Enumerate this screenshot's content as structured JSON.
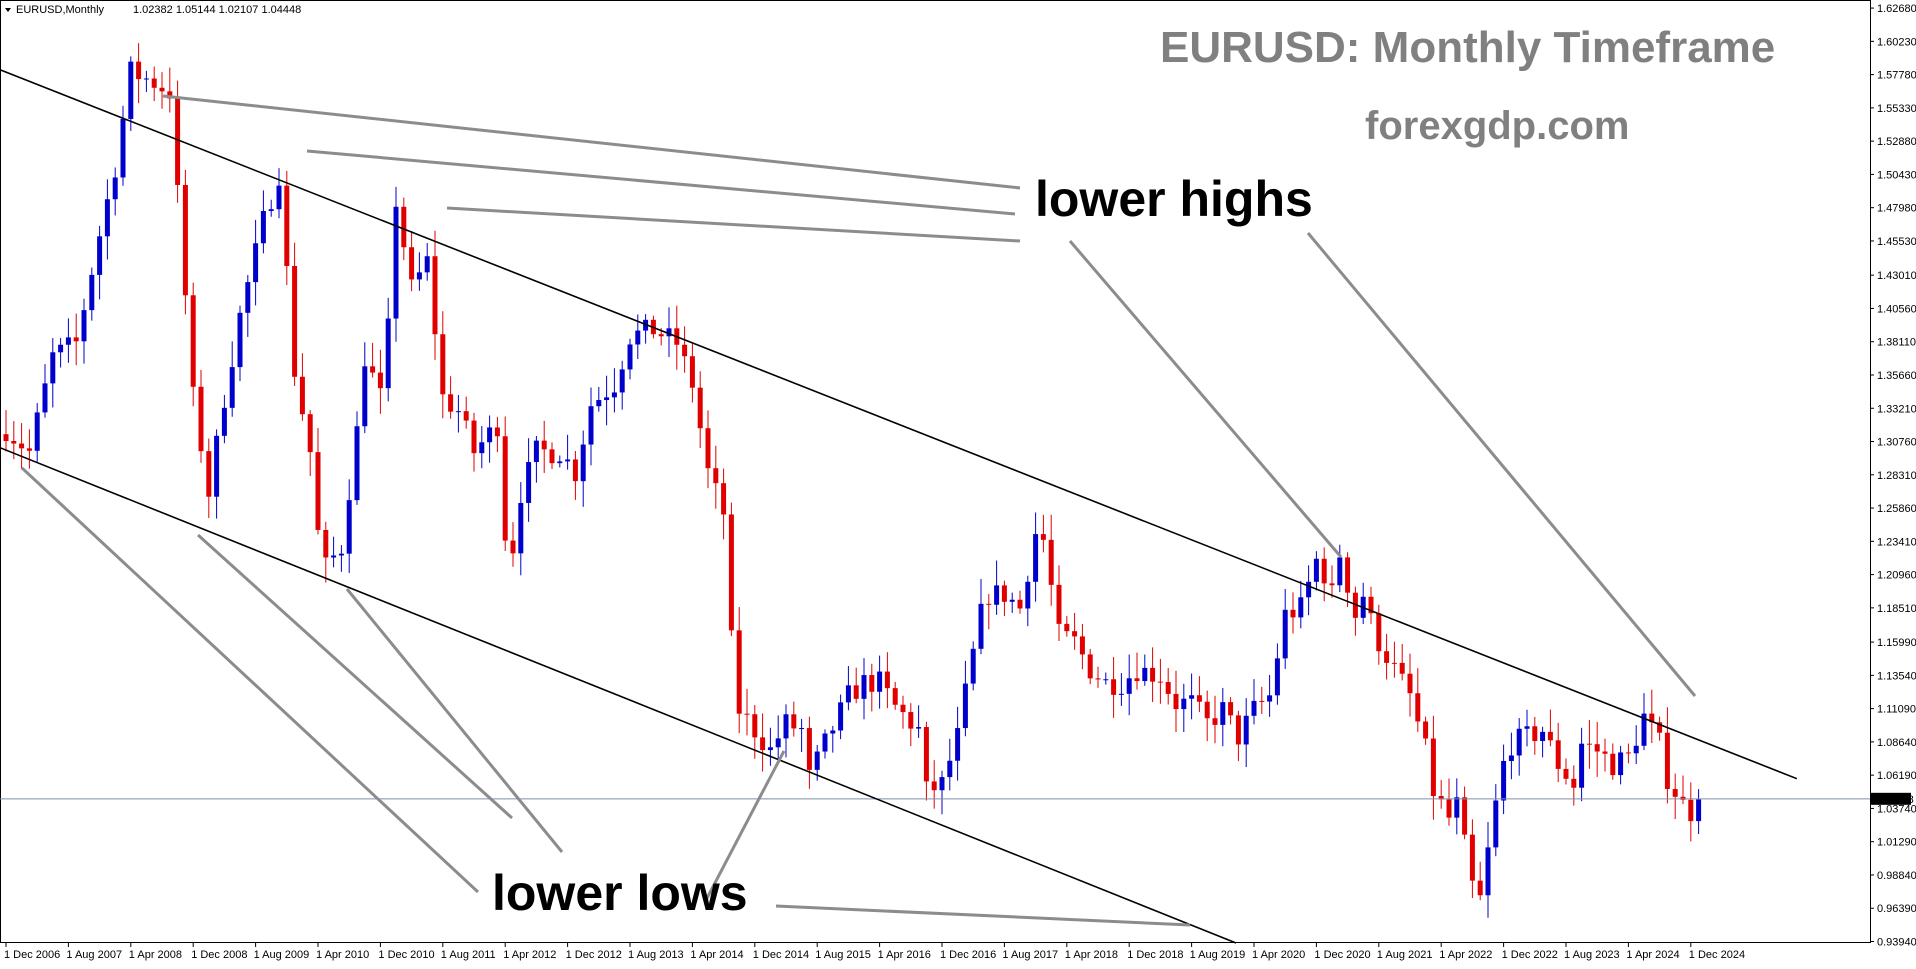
{
  "chart_data": {
    "type": "candlestick",
    "header": {
      "symbol": "EURUSD,Monthly",
      "ohlc": "1.02382 1.05144 1.02107 1.04448"
    },
    "title": "EURUSD: Monthly Timeframe",
    "subtitle": "forexgdp.com",
    "annotations": {
      "lower_highs": "lower highs",
      "lower_lows": "lower lows"
    },
    "current_price_label": "1.04448",
    "current_price": 1.04448,
    "ylim": [
      0.9383,
      1.6298
    ],
    "y_ticks": [
      {
        "v": 1.6268,
        "t": "1.62680"
      },
      {
        "v": 1.6023,
        "t": "1.60230"
      },
      {
        "v": 1.5778,
        "t": "1.57780"
      },
      {
        "v": 1.5533,
        "t": "1.55330"
      },
      {
        "v": 1.5288,
        "t": "1.52880"
      },
      {
        "v": 1.5043,
        "t": "1.50430"
      },
      {
        "v": 1.4798,
        "t": "1.47980"
      },
      {
        "v": 1.4553,
        "t": "1.45530"
      },
      {
        "v": 1.4301,
        "t": "1.43010"
      },
      {
        "v": 1.4056,
        "t": "1.40560"
      },
      {
        "v": 1.3811,
        "t": "1.38110"
      },
      {
        "v": 1.3566,
        "t": "1.35660"
      },
      {
        "v": 1.3321,
        "t": "1.33210"
      },
      {
        "v": 1.3076,
        "t": "1.30760"
      },
      {
        "v": 1.2831,
        "t": "1.28310"
      },
      {
        "v": 1.2586,
        "t": "1.25860"
      },
      {
        "v": 1.2341,
        "t": "1.23410"
      },
      {
        "v": 1.2096,
        "t": "1.20960"
      },
      {
        "v": 1.1851,
        "t": "1.18510"
      },
      {
        "v": 1.1599,
        "t": "1.15990"
      },
      {
        "v": 1.1354,
        "t": "1.13540"
      },
      {
        "v": 1.1109,
        "t": "1.11090"
      },
      {
        "v": 1.0864,
        "t": "1.08640"
      },
      {
        "v": 1.0619,
        "t": "1.06190"
      },
      {
        "v": 1.0374,
        "t": "1.03740"
      },
      {
        "v": 1.0129,
        "t": "1.01290"
      },
      {
        "v": 0.9884,
        "t": "0.98840"
      },
      {
        "v": 0.9639,
        "t": "0.96390"
      },
      {
        "v": 0.9394,
        "t": "0.93940"
      }
    ],
    "x_ticks": [
      {
        "i": 0,
        "t": "1 Dec 2006"
      },
      {
        "i": 8,
        "t": "1 Aug 2007"
      },
      {
        "i": 16,
        "t": "1 Apr 2008"
      },
      {
        "i": 24,
        "t": "1 Dec 2008"
      },
      {
        "i": 32,
        "t": "1 Aug 2009"
      },
      {
        "i": 40,
        "t": "1 Apr 2010"
      },
      {
        "i": 48,
        "t": "1 Dec 2010"
      },
      {
        "i": 56,
        "t": "1 Aug 2011"
      },
      {
        "i": 64,
        "t": "1 Apr 2012"
      },
      {
        "i": 72,
        "t": "1 Dec 2012"
      },
      {
        "i": 80,
        "t": "1 Aug 2013"
      },
      {
        "i": 88,
        "t": "1 Apr 2014"
      },
      {
        "i": 96,
        "t": "1 Dec 2014"
      },
      {
        "i": 104,
        "t": "1 Aug 2015"
      },
      {
        "i": 112,
        "t": "1 Apr 2016"
      },
      {
        "i": 120,
        "t": "1 Dec 2016"
      },
      {
        "i": 128,
        "t": "1 Aug 2017"
      },
      {
        "i": 136,
        "t": "1 Apr 2018"
      },
      {
        "i": 144,
        "t": "1 Dec 2018"
      },
      {
        "i": 152,
        "t": "1 Aug 2019"
      },
      {
        "i": 160,
        "t": "1 Apr 2020"
      },
      {
        "i": 168,
        "t": "1 Dec 2020"
      },
      {
        "i": 176,
        "t": "1 Aug 2021"
      },
      {
        "i": 184,
        "t": "1 Apr 2022"
      },
      {
        "i": 192,
        "t": "1 Dec 2022"
      },
      {
        "i": 200,
        "t": "1 Aug 2023"
      },
      {
        "i": 208,
        "t": "1 Apr 2024"
      },
      {
        "i": 216,
        "t": "1 Dec 2024"
      }
    ],
    "close_anchors": [
      [
        0,
        1.317
      ],
      [
        3,
        1.3
      ],
      [
        6,
        1.37
      ],
      [
        9,
        1.38
      ],
      [
        12,
        1.46
      ],
      [
        14,
        1.51
      ],
      [
        16,
        1.58
      ],
      [
        19,
        1.572
      ],
      [
        21,
        1.565
      ],
      [
        24,
        1.34
      ],
      [
        26,
        1.27
      ],
      [
        28,
        1.34
      ],
      [
        30,
        1.4
      ],
      [
        33,
        1.47
      ],
      [
        35,
        1.505
      ],
      [
        37,
        1.36
      ],
      [
        39,
        1.3
      ],
      [
        40,
        1.24
      ],
      [
        41,
        1.215
      ],
      [
        43,
        1.23
      ],
      [
        45,
        1.315
      ],
      [
        46,
        1.37
      ],
      [
        48,
        1.34
      ],
      [
        49,
        1.39
      ],
      [
        50,
        1.485
      ],
      [
        52,
        1.42
      ],
      [
        54,
        1.44
      ],
      [
        56,
        1.34
      ],
      [
        58,
        1.33
      ],
      [
        60,
        1.3
      ],
      [
        63,
        1.32
      ],
      [
        64,
        1.24
      ],
      [
        65,
        1.23
      ],
      [
        66,
        1.27
      ],
      [
        68,
        1.3
      ],
      [
        71,
        1.3
      ],
      [
        73,
        1.285
      ],
      [
        75,
        1.335
      ],
      [
        78,
        1.35
      ],
      [
        80,
        1.385
      ],
      [
        83,
        1.39
      ],
      [
        86,
        1.38
      ],
      [
        88,
        1.35
      ],
      [
        90,
        1.285
      ],
      [
        92,
        1.255
      ],
      [
        93,
        1.16
      ],
      [
        94,
        1.11
      ],
      [
        96,
        1.095
      ],
      [
        98,
        1.08
      ],
      [
        100,
        1.1
      ],
      [
        102,
        1.095
      ],
      [
        103,
        1.06
      ],
      [
        105,
        1.085
      ],
      [
        108,
        1.12
      ],
      [
        110,
        1.13
      ],
      [
        112,
        1.13
      ],
      [
        114,
        1.112
      ],
      [
        117,
        1.095
      ],
      [
        118,
        1.05
      ],
      [
        120,
        1.055
      ],
      [
        122,
        1.09
      ],
      [
        123,
        1.122
      ],
      [
        125,
        1.18
      ],
      [
        126,
        1.195
      ],
      [
        128,
        1.195
      ],
      [
        130,
        1.185
      ],
      [
        132,
        1.24
      ],
      [
        133,
        1.235
      ],
      [
        135,
        1.165
      ],
      [
        137,
        1.16
      ],
      [
        139,
        1.14
      ],
      [
        141,
        1.13
      ],
      [
        143,
        1.13
      ],
      [
        145,
        1.14
      ],
      [
        148,
        1.135
      ],
      [
        150,
        1.115
      ],
      [
        152,
        1.115
      ],
      [
        154,
        1.1
      ],
      [
        156,
        1.11
      ],
      [
        158,
        1.09
      ],
      [
        160,
        1.11
      ],
      [
        162,
        1.12
      ],
      [
        164,
        1.18
      ],
      [
        166,
        1.185
      ],
      [
        168,
        1.22
      ],
      [
        169,
        1.21
      ],
      [
        170,
        1.195
      ],
      [
        171,
        1.225
      ],
      [
        173,
        1.18
      ],
      [
        174,
        1.195
      ],
      [
        175,
        1.175
      ],
      [
        176,
        1.16
      ],
      [
        178,
        1.14
      ],
      [
        180,
        1.12
      ],
      [
        182,
        1.08
      ],
      [
        183,
        1.05
      ],
      [
        185,
        1.03
      ],
      [
        186,
        1.04
      ],
      [
        187,
        1.01
      ],
      [
        188,
        0.98
      ],
      [
        189,
        0.97
      ],
      [
        191,
        1.04
      ],
      [
        192,
        1.07
      ],
      [
        193,
        1.085
      ],
      [
        195,
        1.09
      ],
      [
        197,
        1.095
      ],
      [
        199,
        1.07
      ],
      [
        201,
        1.055
      ],
      [
        202,
        1.085
      ],
      [
        204,
        1.08
      ],
      [
        206,
        1.07
      ],
      [
        208,
        1.075
      ],
      [
        210,
        1.105
      ],
      [
        212,
        1.085
      ],
      [
        213,
        1.06
      ],
      [
        215,
        1.04
      ],
      [
        216,
        1.035
      ],
      [
        217,
        1.044
      ]
    ],
    "lower_high_trendline": [
      [
        1.591,
        -5
      ],
      [
        1.0593,
        229.6
      ]
    ],
    "lower_low_trendline": [
      [
        1.3105,
        -4
      ],
      [
        0.9383,
        157.7
      ]
    ]
  }
}
